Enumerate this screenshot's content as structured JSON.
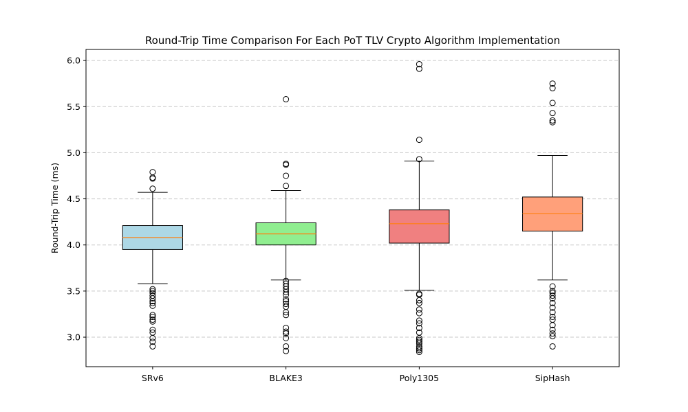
{
  "chart_data": {
    "type": "box",
    "title": "Round-Trip Time Comparison For Each PoT TLV Crypto Algorithm Implementation",
    "xlabel": "",
    "ylabel": "Round-Trip Time (ms)",
    "ylim": [
      2.68,
      6.12
    ],
    "yticks": [
      "3.0",
      "3.5",
      "4.0",
      "4.5",
      "5.0",
      "5.5",
      "6.0"
    ],
    "grid": "horizontal dashed",
    "colors": {
      "grid": "#c8c8c8",
      "median": "#ff7f0e",
      "edge": "#000000"
    },
    "categories": [
      "SRv6",
      "BLAKE3",
      "Poly1305",
      "SipHash"
    ],
    "boxes": [
      {
        "label": "SRv6",
        "color": "#add8e6",
        "whisker_low": 3.58,
        "q1": 3.95,
        "median": 4.08,
        "q3": 4.21,
        "whisker_high": 4.57,
        "outliers": [
          4.79,
          4.73,
          4.72,
          4.61,
          3.52,
          3.5,
          3.48,
          3.45,
          3.42,
          3.39,
          3.37,
          3.34,
          3.24,
          3.22,
          3.19,
          3.17,
          3.08,
          3.05,
          2.99,
          2.95,
          2.9
        ]
      },
      {
        "label": "BLAKE3",
        "color": "#90ee90",
        "whisker_low": 3.62,
        "q1": 4.0,
        "median": 4.12,
        "q3": 4.24,
        "whisker_high": 4.59,
        "outliers": [
          5.58,
          4.88,
          4.87,
          4.75,
          4.64,
          3.61,
          3.58,
          3.55,
          3.52,
          3.49,
          3.46,
          3.41,
          3.39,
          3.36,
          3.33,
          3.27,
          3.24,
          3.1,
          3.06,
          3.04,
          2.99,
          2.9,
          2.85
        ]
      },
      {
        "label": "Poly1305",
        "color": "#f08080",
        "whisker_low": 3.51,
        "q1": 4.02,
        "median": 4.23,
        "q3": 4.38,
        "whisker_high": 4.91,
        "outliers": [
          5.96,
          5.91,
          5.14,
          4.93,
          3.47,
          3.46,
          3.4,
          3.37,
          3.3,
          3.26,
          3.18,
          3.15,
          3.1,
          3.05,
          2.99,
          2.97,
          2.95,
          2.93,
          2.9,
          2.88,
          2.86,
          2.84
        ]
      },
      {
        "label": "SipHash",
        "color": "#ffa07a",
        "whisker_low": 3.62,
        "q1": 4.15,
        "median": 4.34,
        "q3": 4.52,
        "whisker_high": 4.97,
        "outliers": [
          5.75,
          5.7,
          5.54,
          5.43,
          5.35,
          5.33,
          3.55,
          3.5,
          3.48,
          3.45,
          3.42,
          3.37,
          3.32,
          3.27,
          3.22,
          3.19,
          3.13,
          3.08,
          3.04,
          3.01,
          2.9
        ]
      }
    ]
  }
}
